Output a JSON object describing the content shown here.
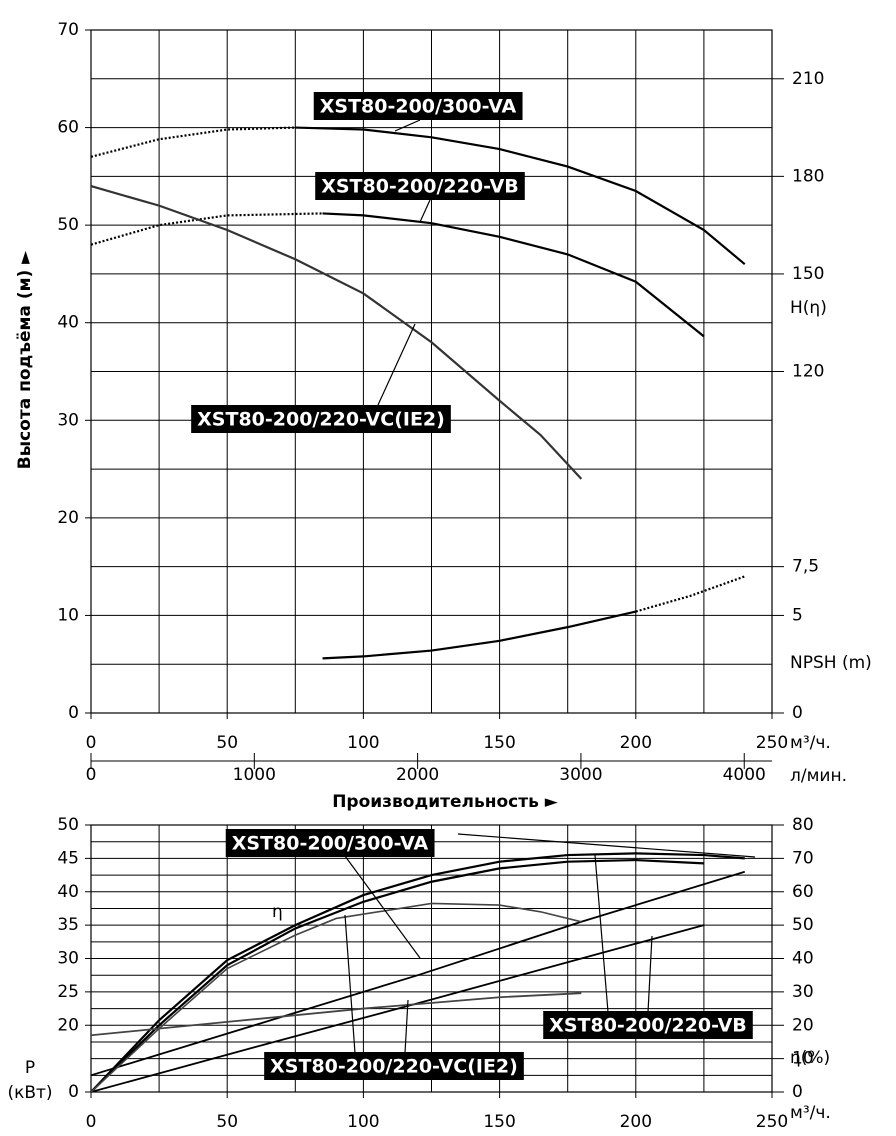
{
  "chart_data": [
    {
      "type": "line",
      "ylabel": "Высота подъёма (м) ►",
      "xlabel": "Производительность ►",
      "xunit": "м³/ч.",
      "x2unit": "л/мин.",
      "xlim": [
        0,
        250
      ],
      "xticks": [
        0,
        50,
        100,
        150,
        200,
        250
      ],
      "xgrid": [
        0,
        25,
        50,
        75,
        100,
        125,
        150,
        175,
        200,
        225,
        250
      ],
      "x2lim": [
        0,
        4170
      ],
      "x2ticks": [
        0,
        1000,
        2000,
        3000,
        4000
      ],
      "ylim": [
        0,
        70
      ],
      "yticks": [
        0,
        10,
        20,
        30,
        40,
        50,
        60,
        70
      ],
      "ygrid": [
        0,
        5,
        10,
        15,
        20,
        25,
        30,
        35,
        40,
        45,
        50,
        55,
        60,
        65,
        70
      ],
      "y2lim": [
        15,
        225
      ],
      "y2ticks": [
        120,
        150,
        180,
        210
      ],
      "y2label": "H(η)",
      "y3lim": [
        0,
        35
      ],
      "y3ticks": [
        0,
        5,
        {
          "value": 7.5,
          "label": "7,5"
        }
      ],
      "y3label": "NPSH (m)",
      "series": [
        {
          "name": "XST80-200/300-VA",
          "color": "#000000",
          "x": [
            75,
            100,
            125,
            150,
            175,
            200,
            225,
            240
          ],
          "values": [
            60,
            59.8,
            59,
            57.8,
            56,
            53.5,
            49.5,
            46
          ],
          "dotted_x": [
            0,
            25,
            50,
            75
          ],
          "dotted_values": [
            57,
            58.8,
            59.8,
            60
          ]
        },
        {
          "name": "XST80-200/220-VB",
          "color": "#000000",
          "x": [
            85,
            100,
            125,
            150,
            175,
            200,
            225
          ],
          "values": [
            51.2,
            51,
            50.2,
            48.8,
            47,
            44.2,
            38.6
          ],
          "dotted_x": [
            0,
            25,
            50,
            85
          ],
          "dotted_values": [
            48,
            50,
            51,
            51.2
          ]
        },
        {
          "name": "XST80-200/220-VC(IE2)",
          "color": "#333333",
          "x": [
            0,
            25,
            50,
            75,
            100,
            125,
            150,
            165,
            180
          ],
          "values": [
            54,
            52,
            49.5,
            46.5,
            43,
            38,
            32,
            28.5,
            24
          ]
        },
        {
          "color": "#000000",
          "axis": "y3",
          "x": [
            85,
            100,
            125,
            150,
            175,
            200
          ],
          "values": [
            2.8,
            2.9,
            3.2,
            3.7,
            4.4,
            5.2
          ],
          "dotted_x": [
            200,
            220,
            240
          ],
          "dotted_values": [
            5.2,
            6,
            7
          ]
        }
      ]
    },
    {
      "type": "line",
      "xunit": "м³/ч.",
      "xlim": [
        0,
        250
      ],
      "xticks": [
        0,
        50,
        100,
        150,
        200,
        250
      ],
      "xgrid": [
        0,
        25,
        50,
        75,
        100,
        125,
        150,
        175,
        200,
        225,
        250
      ],
      "ylabel": [
        "P",
        "(кВт)"
      ],
      "ylim": [
        10,
        50
      ],
      "yticks": [
        {
          "value": 10,
          "label": "0"
        },
        20,
        25,
        30,
        35,
        40,
        45,
        50
      ],
      "y2lim": [
        0,
        80
      ],
      "y2ticks": [
        0,
        10,
        20,
        30,
        40,
        50,
        60,
        70,
        80
      ],
      "y2label": "η(%)",
      "y2grid": [
        0,
        5,
        10,
        15,
        20,
        25,
        30,
        35,
        40,
        45,
        50,
        55,
        60,
        65,
        70,
        75,
        80
      ],
      "eta_label": "η",
      "curves": [
        {
          "name": "XST80-200/300-VA",
          "color": "#000000",
          "efficiency": {
            "x": [
              0,
              25,
              50,
              75,
              100,
              125,
              150,
              175,
              200,
              225,
              240
            ],
            "values": [
              0,
              21.5,
              39.5,
              50,
              59,
              65,
              69,
              71,
              71.5,
              71,
              70
            ]
          },
          "power": {
            "x": [
              0,
              60,
              120,
              180,
              240
            ],
            "values": [
              12.5,
              20,
              27.5,
              35.5,
              43
            ]
          }
        },
        {
          "name": "XST80-200/220-VB",
          "color": "#000000",
          "efficiency": {
            "x": [
              0,
              25,
              50,
              75,
              100,
              125,
              150,
              175,
              200,
              225
            ],
            "values": [
              0,
              20,
              38,
              49,
              57,
              63,
              67,
              69,
              69.5,
              68.5
            ]
          },
          "power": {
            "x": [
              0,
              60,
              120,
              180,
              225
            ],
            "values": [
              10,
              16.7,
              23.3,
              30,
              35
            ]
          }
        },
        {
          "name": "XST80-200/220-VC(IE2)",
          "color": "#444444",
          "efficiency": {
            "x": [
              0,
              25,
              50,
              75,
              90,
              125,
              150,
              165,
              180
            ],
            "values": [
              0,
              19,
              37,
              47,
              52,
              56.5,
              56,
              54,
              51
            ]
          },
          "power": {
            "x": [
              0,
              50,
              100,
              150,
              180
            ],
            "values": [
              18.5,
              20.5,
              22.5,
              24.2,
              24.8
            ]
          }
        }
      ]
    }
  ]
}
